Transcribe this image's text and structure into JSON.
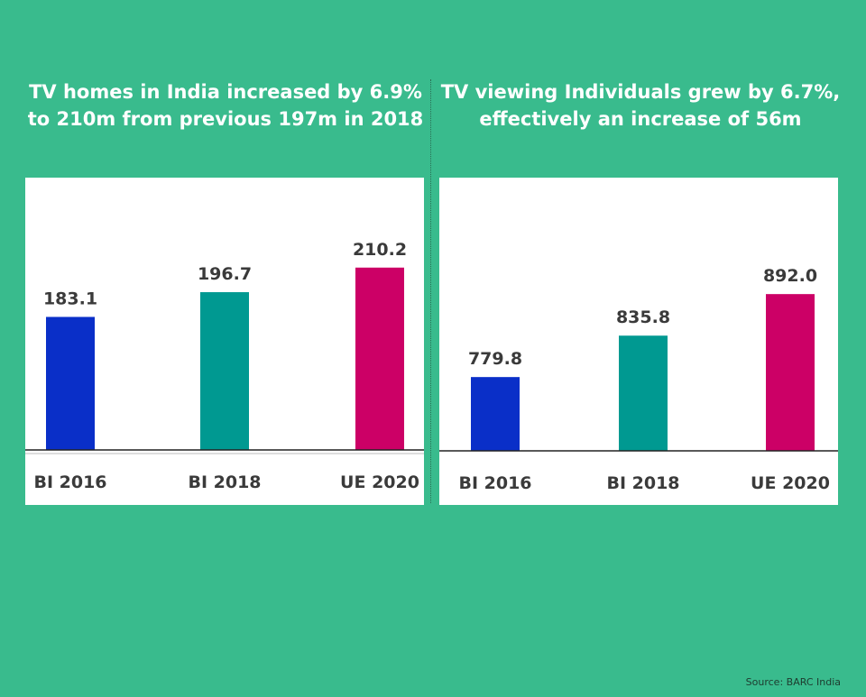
{
  "headings": {
    "left": [
      "TV homes in India increased by 6.9%",
      "to 210m from previous 197m in 2018"
    ],
    "right": [
      "TV viewing Individuals grew by 6.7%,",
      "effectively an increase of 56m"
    ]
  },
  "source": "Source: BARC India",
  "colors": {
    "background": "#39bb8d",
    "bar1": "#0a2fc8",
    "bar2": "#009991",
    "bar3": "#cc0066"
  },
  "chart_data": [
    {
      "type": "bar",
      "categories": [
        "BI 2016",
        "BI 2018",
        "UE 2020"
      ],
      "values": [
        183.1,
        196.7,
        210.2
      ],
      "value_labels": [
        "183.1",
        "196.7",
        "210.2"
      ],
      "title": "",
      "xlabel": "",
      "ylabel": "",
      "ylim": [
        110,
        220
      ],
      "grid": false
    },
    {
      "type": "bar",
      "categories": [
        "BI 2016",
        "BI 2018",
        "UE 2020"
      ],
      "values": [
        779.8,
        835.8,
        892.0
      ],
      "value_labels": [
        "779.8",
        "835.8",
        "892.0"
      ],
      "title": "",
      "xlabel": "",
      "ylabel": "",
      "ylim": [
        680,
        930
      ],
      "grid": false
    }
  ]
}
